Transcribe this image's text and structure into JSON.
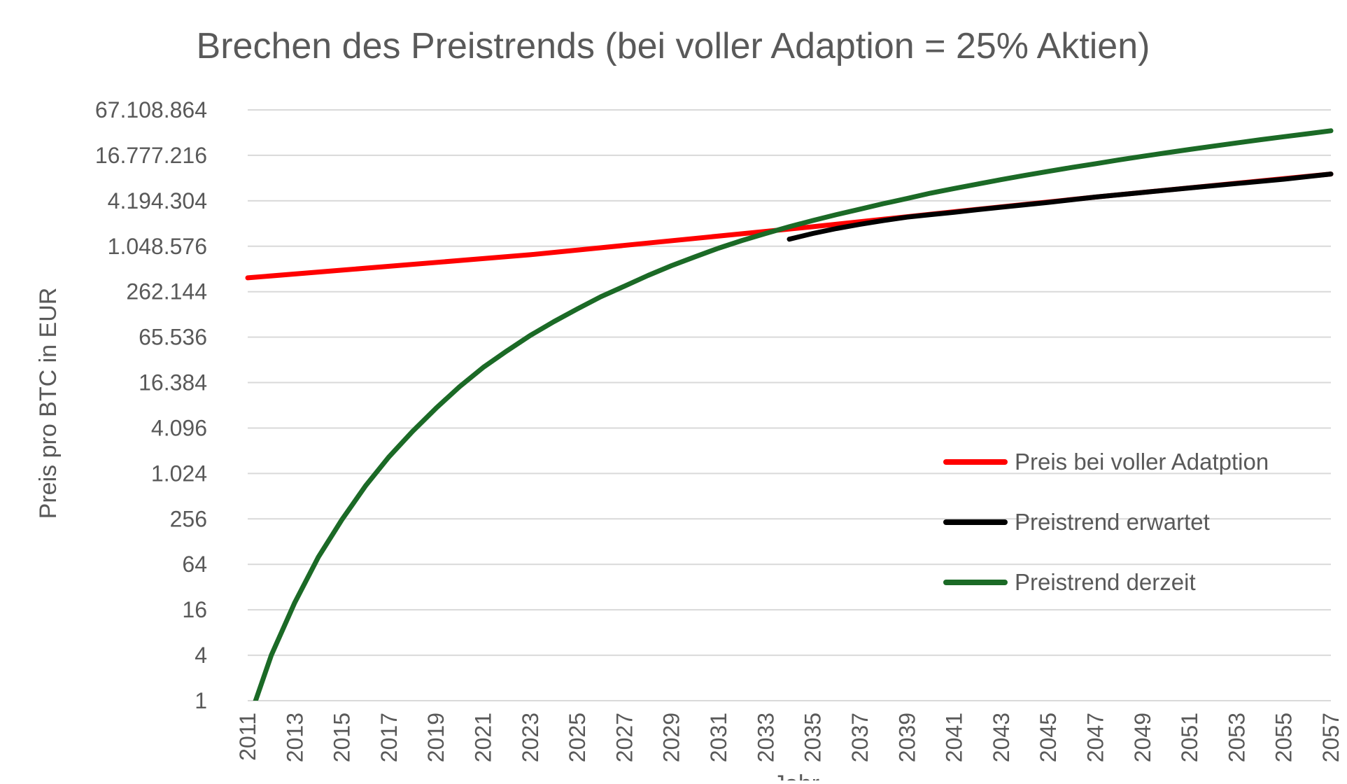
{
  "chart_data": {
    "type": "line",
    "title": "Brechen des Preistrends (bei voller Adaption = 25% Aktien)",
    "xlabel": "Jahr",
    "ylabel": "Preis pro BTC in EUR",
    "y_scale": "log2",
    "ylim": [
      1,
      67108864
    ],
    "xlim": [
      2011,
      2057
    ],
    "y_ticks": [
      1,
      4,
      16,
      64,
      256,
      1024,
      4096,
      16384,
      65536,
      262144,
      1048576,
      4194304,
      16777216,
      67108864
    ],
    "y_tick_labels": [
      "1",
      "4",
      "16",
      "64",
      "256",
      "1.024",
      "4.096",
      "16.384",
      "65.536",
      "262.144",
      "1.048.576",
      "4.194.304",
      "16.777.216",
      "67.108.864"
    ],
    "x_tick_labels": [
      "2011",
      "2013",
      "2015",
      "2017",
      "2019",
      "2021",
      "2023",
      "2025",
      "2027",
      "2029",
      "2031",
      "2033",
      "2035",
      "2037",
      "2039",
      "2041",
      "2043",
      "2045",
      "2047",
      "2049",
      "2051",
      "2053",
      "2055",
      "2057"
    ],
    "grid": "horizontal",
    "legend_position": "lower-right",
    "series": [
      {
        "name": "Preis bei voller Adatption",
        "color": "#ff0000",
        "x": [
          2011,
          2023,
          2035,
          2041,
          2047,
          2057
        ],
        "y": [
          400000,
          810000,
          1900000,
          3000000,
          4700000,
          9500000
        ]
      },
      {
        "name": "Preistrend erwartet",
        "color": "#000000",
        "x": [
          2034,
          2035,
          2036,
          2037,
          2038,
          2039,
          2040,
          2041,
          2042,
          2043,
          2045,
          2047,
          2049,
          2051,
          2053,
          2055,
          2057
        ],
        "y": [
          1300000,
          1550000,
          1800000,
          2050000,
          2300000,
          2550000,
          2750000,
          2950000,
          3200000,
          3450000,
          4000000,
          4700000,
          5400000,
          6200000,
          7100000,
          8100000,
          9500000
        ]
      },
      {
        "name": "Preistrend derzeit",
        "color": "#1b6a26",
        "x": [
          2011,
          2012,
          2013,
          2014,
          2015,
          2016,
          2017,
          2018,
          2019,
          2020,
          2021,
          2022,
          2023,
          2024,
          2025,
          2026,
          2027,
          2028,
          2029,
          2030,
          2031,
          2032,
          2033,
          2034,
          2035,
          2036,
          2037,
          2038,
          2039,
          2040,
          2041,
          2042,
          2043,
          2044,
          2045,
          2046,
          2047,
          2048,
          2049,
          2050,
          2051,
          2052,
          2053,
          2054,
          2055,
          2056,
          2057
        ],
        "y": [
          0.5,
          4,
          20,
          80,
          250,
          700,
          1700,
          3700,
          7500,
          14500,
          26000,
          43000,
          69000,
          105000,
          155000,
          225000,
          310000,
          430000,
          580000,
          760000,
          990000,
          1250000,
          1550000,
          1900000,
          2300000,
          2750000,
          3250000,
          3850000,
          4500000,
          5300000,
          6100000,
          7000000,
          8000000,
          9100000,
          10300000,
          11600000,
          13000000,
          14600000,
          16300000,
          18100000,
          20100000,
          22200000,
          24500000,
          27000000,
          29600000,
          32400000,
          35500000
        ]
      }
    ]
  }
}
